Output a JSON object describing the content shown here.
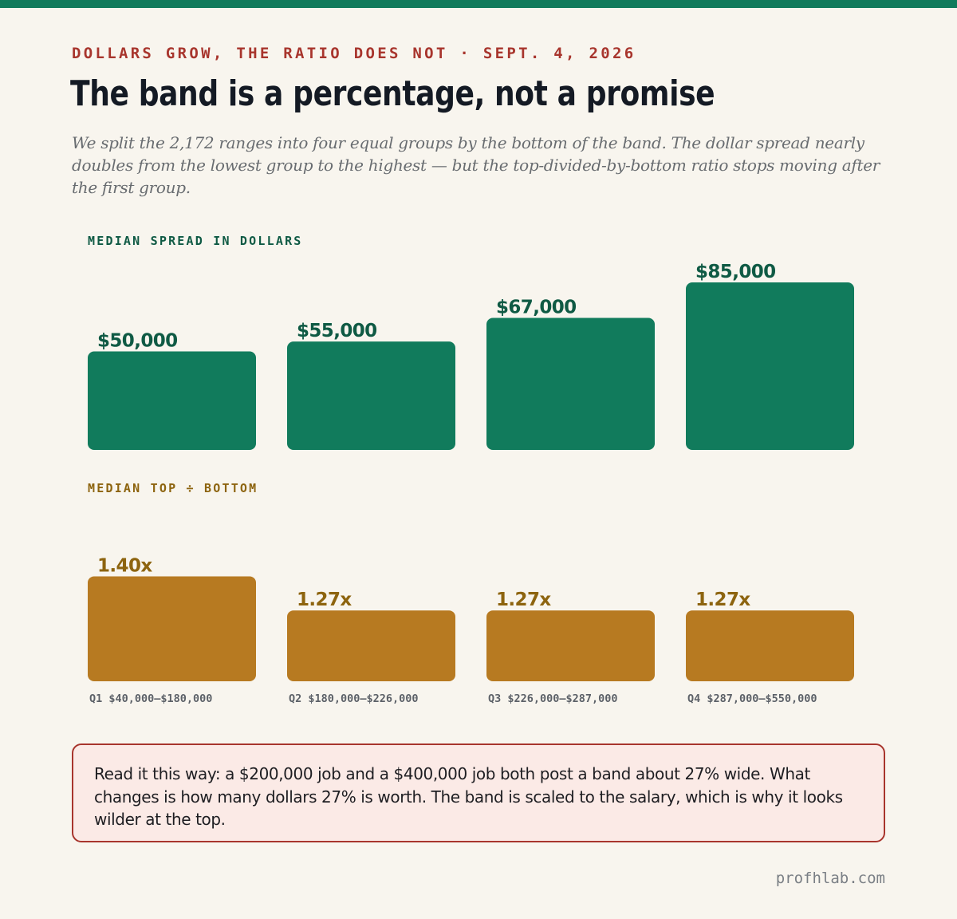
{
  "kicker": "DOLLARS GROW, THE RATIO DOES NOT · SEPT. 4, 2026",
  "title": "The band is a percentage, not a promise",
  "subtitle": "We split the 2,172 ranges into four equal groups by the bottom of the band. The dollar spread nearly doubles from the lowest group to the highest — but the top-divided-by-bottom ratio stops moving after the first group.",
  "colors": {
    "green": "#117b5c",
    "gold": "#b77a21",
    "green_text": "#0f5a44",
    "gold_text": "#8d640f",
    "accent": "#a8352d"
  },
  "chart_data": [
    {
      "type": "bar",
      "title": "MEDIAN SPREAD IN DOLLARS",
      "categories": [
        "Q1 $40,000–$180,000",
        "Q2 $180,000–$226,000",
        "Q3 $226,000–$287,000",
        "Q4 $287,000–$550,000"
      ],
      "values": [
        50000,
        55000,
        67000,
        85000
      ],
      "value_labels": [
        "$50,000",
        "$55,000",
        "$67,000",
        "$85,000"
      ],
      "ylim": [
        0,
        100000
      ],
      "grid": false
    },
    {
      "type": "bar",
      "title": "MEDIAN TOP ÷ BOTTOM",
      "categories": [
        "Q1 $40,000–$180,000",
        "Q2 $180,000–$226,000",
        "Q3 $226,000–$287,000",
        "Q4 $287,000–$550,000"
      ],
      "values": [
        1.4,
        1.27,
        1.27,
        1.27
      ],
      "value_labels": [
        "1.40x",
        "1.27x",
        "1.27x",
        "1.27x"
      ],
      "ylim": [
        1.0,
        1.45
      ],
      "grid": false
    }
  ],
  "callout": "Read it this way: a $200,000 job and a $400,000 job both post a band about 27% wide. What changes is how many dollars 27% is worth. The band is scaled to the salary, which is why it looks wilder at the top.",
  "footer": "profhlab.com"
}
